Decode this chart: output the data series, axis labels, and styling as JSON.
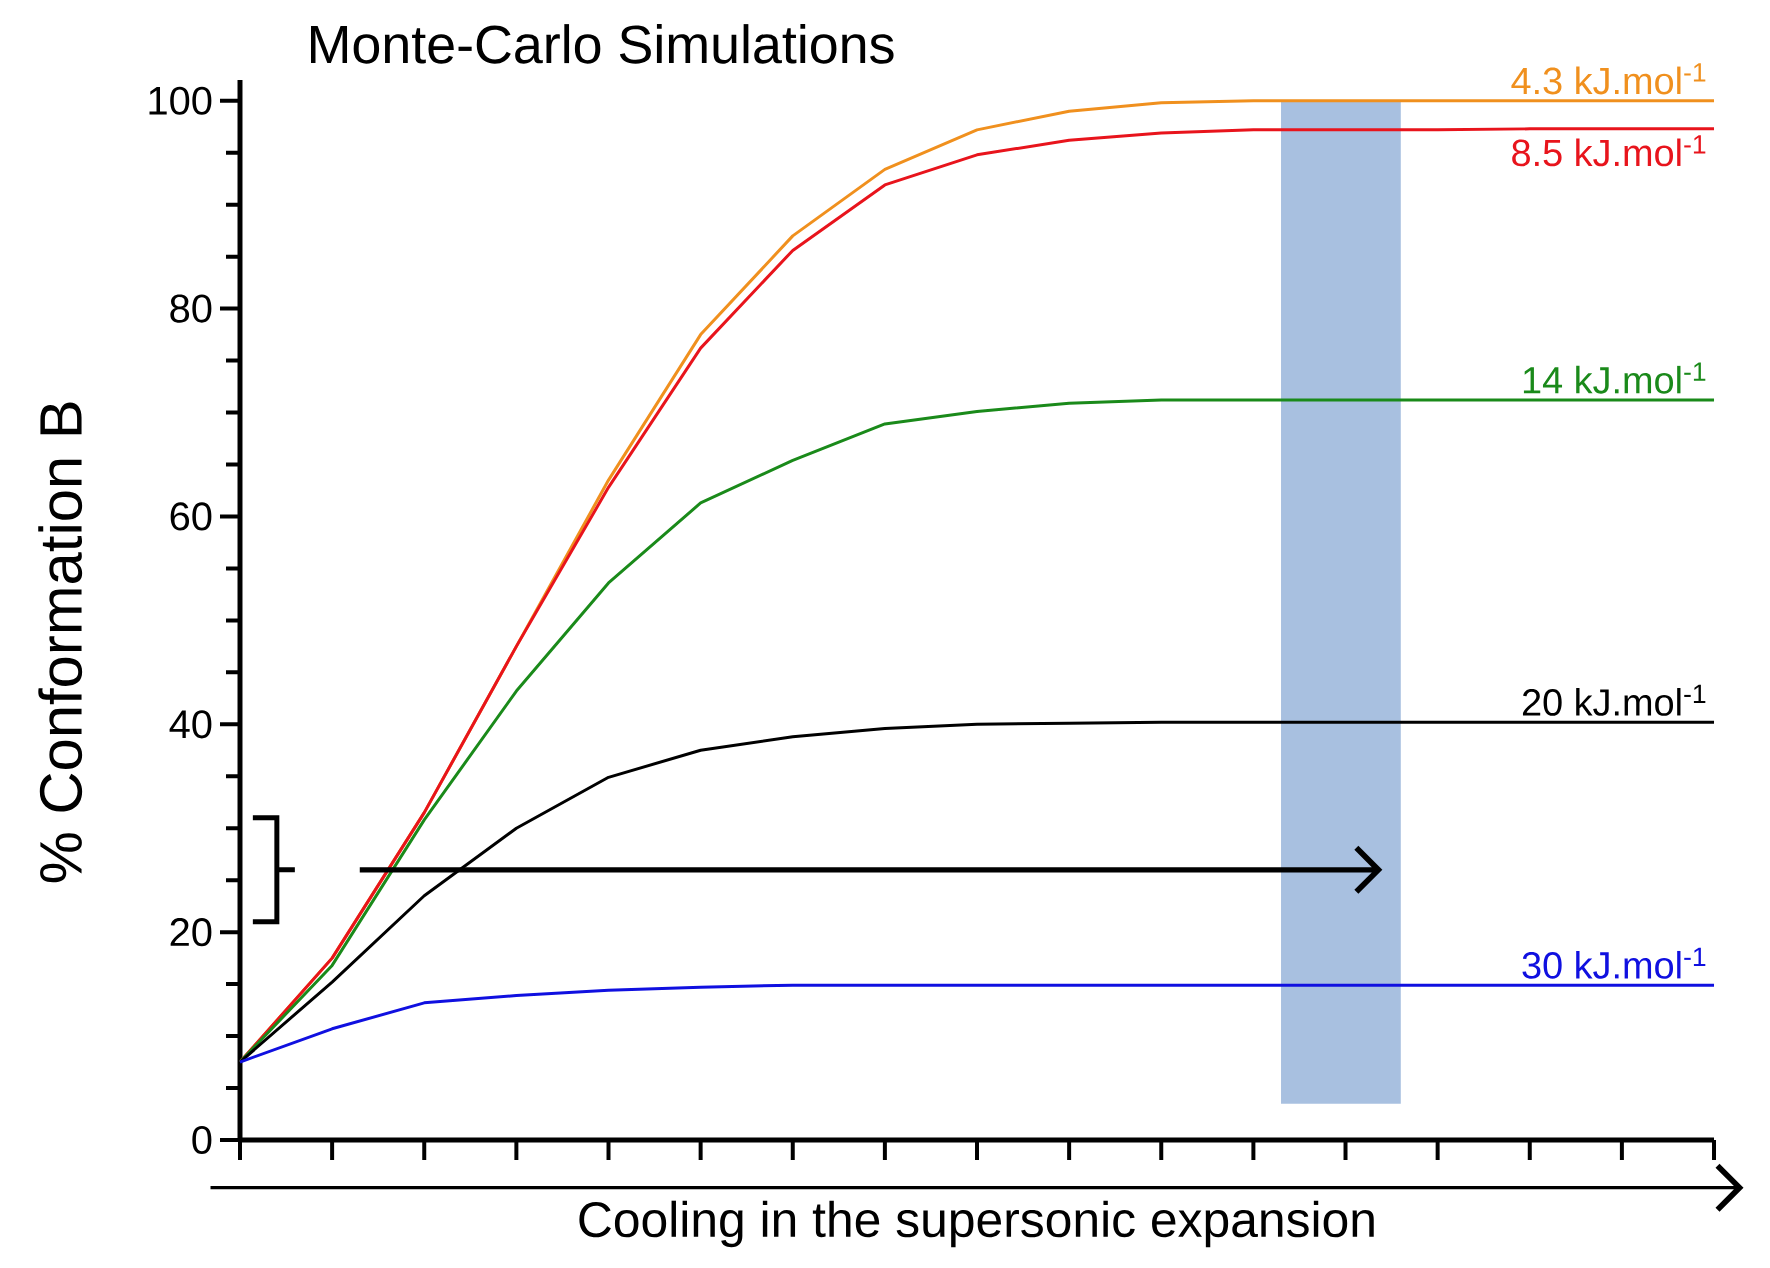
{
  "chart_data": {
    "type": "line",
    "title": "Monte-Carlo Simulations",
    "ylabel": "% Conformation B",
    "xlabel": "Cooling in the supersonic expansion",
    "categories": [
      null,
      null,
      null,
      null,
      null,
      null,
      null,
      null,
      null,
      null,
      null,
      null,
      null,
      null,
      null,
      null,
      null
    ],
    "ylim": [
      0,
      102
    ],
    "yticks": [
      0,
      20,
      40,
      60,
      80,
      100
    ],
    "grid": false,
    "legend": false,
    "marker": "none",
    "line_style": "solid",
    "series": [
      {
        "name": "4.3 kJ.mol$^{-1}$",
        "color": "#f0901e",
        "values": [
          7.5,
          17.5,
          31.5,
          47.5,
          63.5,
          77.5,
          87,
          93.4,
          97.2,
          99,
          99.8,
          100,
          100,
          100,
          100,
          100,
          100
        ]
      },
      {
        "name": "8.5 kJ.mol$^{-1}$",
        "color": "#e8141c",
        "values": [
          7.5,
          17.5,
          31.5,
          47.5,
          62.8,
          76.2,
          85.6,
          91.9,
          94.8,
          96.2,
          96.9,
          97.2,
          97.2,
          97.2,
          97.3,
          97.3,
          97.3
        ]
      },
      {
        "name": "14 kJ.mol$^{-1}$",
        "color": "#1a8a1a",
        "values": [
          7.5,
          16.8,
          30.8,
          43.2,
          53.6,
          61.3,
          65.4,
          68.9,
          70.1,
          70.9,
          71.2,
          71.2,
          71.2,
          71.2,
          71.2,
          71.2,
          71.2
        ]
      },
      {
        "name": "20 kJ.mol$^{-1}$",
        "color": "#000000",
        "values": [
          7.5,
          15.2,
          23.5,
          30,
          34.9,
          37.5,
          38.8,
          39.6,
          40,
          40.1,
          40.2,
          40.2,
          40.2,
          40.2,
          40.2,
          40.2,
          40.2
        ]
      },
      {
        "name": "30 kJ.mol$^{-1}$",
        "color": "#1010e0",
        "values": [
          7.5,
          10.7,
          13.2,
          13.9,
          14.4,
          14.7,
          14.9,
          14.9,
          14.9,
          14.9,
          14.9,
          14.9,
          14.9,
          14.9,
          14.9,
          14.9,
          14.9
        ]
      }
    ]
  }
}
